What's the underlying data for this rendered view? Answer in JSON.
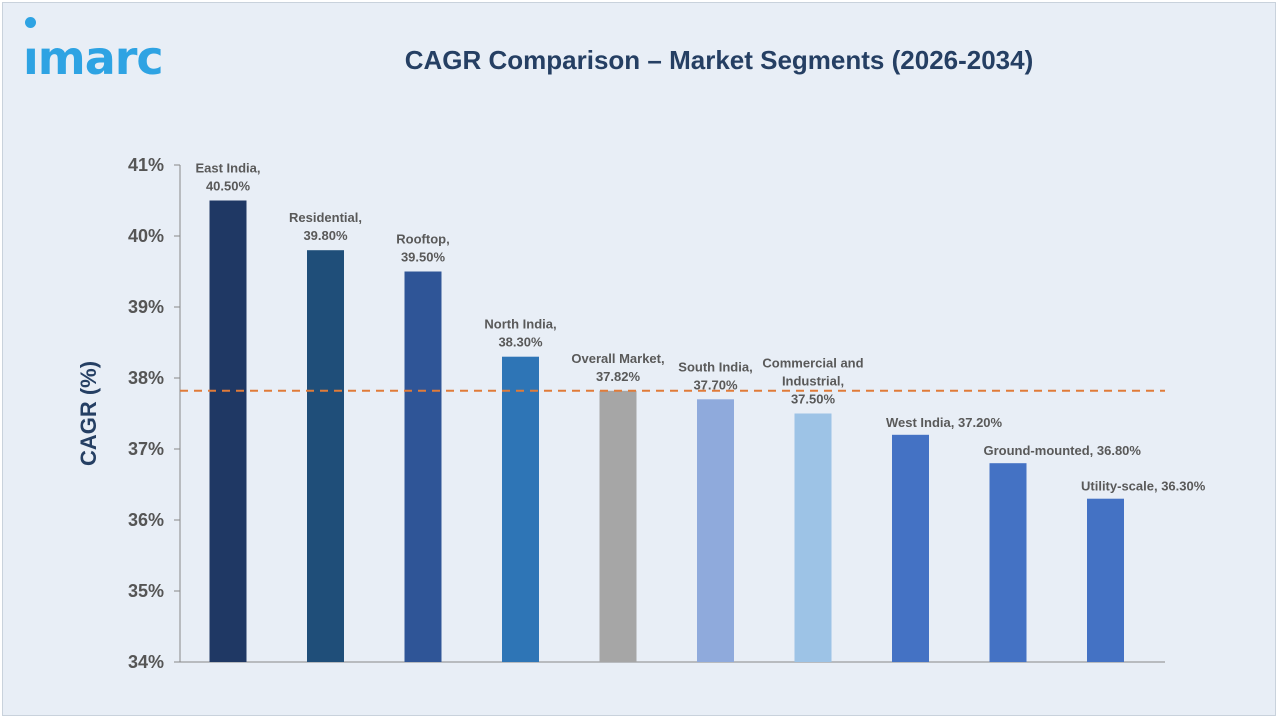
{
  "logo": {
    "text": "ımarc"
  },
  "chart_data": {
    "type": "bar",
    "title": "CAGR Comparison – Market Segments (2026-2034)",
    "ylabel": "CAGR (%)",
    "xlabel": "",
    "ylim": [
      34,
      41
    ],
    "yticks": [
      "34%",
      "35%",
      "36%",
      "37%",
      "38%",
      "39%",
      "40%",
      "41%"
    ],
    "grid": false,
    "reference_line": {
      "value": 37.82,
      "style": "dashed",
      "color": "#e07b39"
    },
    "bars": [
      {
        "category": "East India",
        "value": 40.5,
        "label": [
          "East India,",
          "40.50%"
        ],
        "color": "#1f3864"
      },
      {
        "category": "Residential",
        "value": 39.8,
        "label": [
          "Residential,",
          "39.80%"
        ],
        "color": "#1f4e79"
      },
      {
        "category": "Rooftop",
        "value": 39.5,
        "label": [
          "Rooftop,",
          "39.50%"
        ],
        "color": "#2f5597"
      },
      {
        "category": "North India",
        "value": 38.3,
        "label": [
          "North India,",
          "38.30%"
        ],
        "color": "#2e75b6"
      },
      {
        "category": "Overall Market",
        "value": 37.82,
        "label": [
          "Overall Market,",
          "37.82%"
        ],
        "color": "#a6a6a6"
      },
      {
        "category": "South India",
        "value": 37.7,
        "label": [
          "South India,",
          "37.70%"
        ],
        "color": "#8faadc"
      },
      {
        "category": "Commercial and Industrial",
        "value": 37.5,
        "label": [
          "Commercial and",
          "Industrial,",
          "37.50%"
        ],
        "color": "#9dc3e6"
      },
      {
        "category": "West India",
        "value": 37.2,
        "label": [
          "West India, 37.20%"
        ],
        "color": "#4472c4"
      },
      {
        "category": "Ground-mounted",
        "value": 36.8,
        "label": [
          "Ground-mounted, 36.80%"
        ],
        "color": "#4472c4"
      },
      {
        "category": "Utility-scale",
        "value": 36.3,
        "label": [
          "Utility-scale, 36.30%"
        ],
        "color": "#4472c4"
      }
    ]
  }
}
